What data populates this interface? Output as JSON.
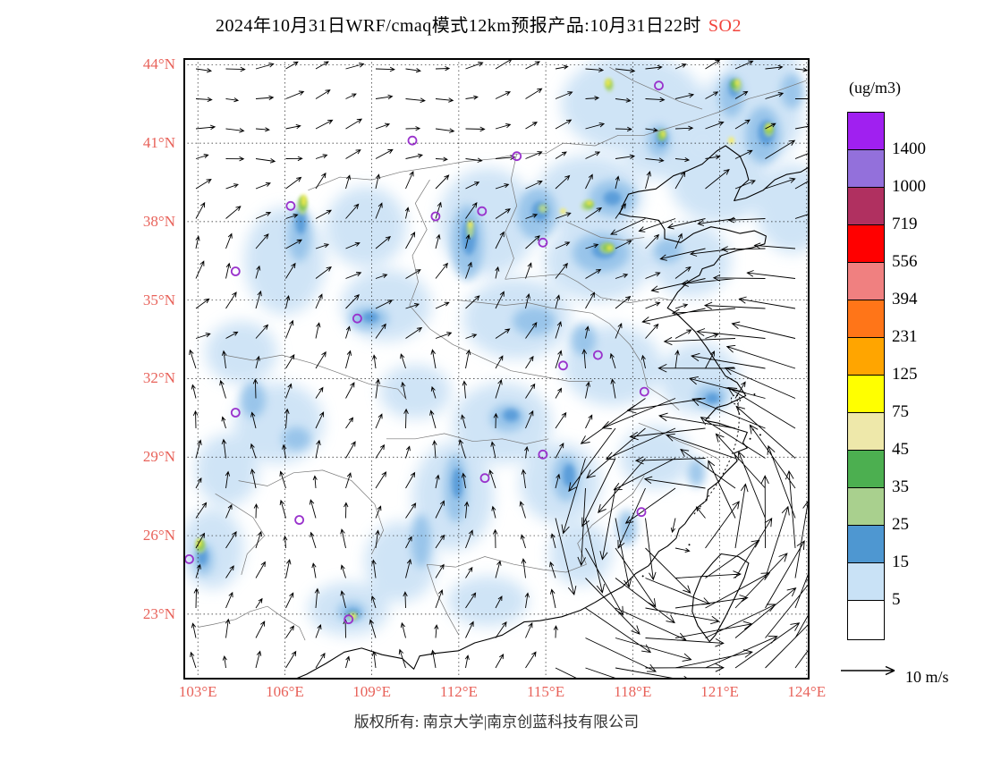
{
  "title": {
    "main": "2024年10月31日WRF/cmaq模式12km预报产品:10月31日22时",
    "species": "SO2",
    "species_color": "#F2433B"
  },
  "axes": {
    "label_color": "#E8625A",
    "lat_ticks": [
      {
        "label": "44°N",
        "value": 44
      },
      {
        "label": "41°N",
        "value": 41
      },
      {
        "label": "38°N",
        "value": 38
      },
      {
        "label": "35°N",
        "value": 35
      },
      {
        "label": "32°N",
        "value": 32
      },
      {
        "label": "29°N",
        "value": 29
      },
      {
        "label": "26°N",
        "value": 26
      },
      {
        "label": "23°N",
        "value": 23
      }
    ],
    "lon_ticks": [
      {
        "label": "103°E",
        "value": 103
      },
      {
        "label": "106°E",
        "value": 106
      },
      {
        "label": "109°E",
        "value": 109
      },
      {
        "label": "112°E",
        "value": 112
      },
      {
        "label": "115°E",
        "value": 115
      },
      {
        "label": "118°E",
        "value": 118
      },
      {
        "label": "121°E",
        "value": 121
      },
      {
        "label": "124°E",
        "value": 124
      }
    ]
  },
  "legend": {
    "unit": "(ug/m3)",
    "levels": [
      1400,
      1000,
      719,
      556,
      394,
      231,
      125,
      75,
      45,
      35,
      25,
      15,
      5
    ],
    "colors": [
      "#A020F0",
      "#9370DB",
      "#B03060",
      "#FF0000",
      "#F08080",
      "#FF7518",
      "#FFA500",
      "#FFFF00",
      "#EEE8AA",
      "#4CAF50",
      "#A9D08E",
      "#4E97D1",
      "#C9E2F6",
      "#FFFFFF"
    ]
  },
  "wind_scale": {
    "label": "10 m/s"
  },
  "footer": {
    "copyright": "版权所有: 南京大学|南京创蓝科技有限公司"
  },
  "map": {
    "lon_range": [
      102.5,
      124.1
    ],
    "lat_range": [
      20.5,
      44.25
    ],
    "marker_color": "#9932CC",
    "city_markers": [
      [
        118.9,
        43.2
      ],
      [
        110.4,
        41.1
      ],
      [
        114.0,
        40.5
      ],
      [
        106.2,
        38.6
      ],
      [
        111.2,
        38.2
      ],
      [
        112.8,
        38.4
      ],
      [
        114.9,
        37.2
      ],
      [
        104.3,
        36.1
      ],
      [
        108.5,
        34.3
      ],
      [
        115.6,
        32.5
      ],
      [
        116.8,
        32.9
      ],
      [
        118.4,
        31.5
      ],
      [
        104.3,
        30.7
      ],
      [
        114.9,
        29.1
      ],
      [
        112.9,
        28.2
      ],
      [
        106.5,
        26.6
      ],
      [
        118.3,
        26.9
      ],
      [
        102.7,
        25.1
      ],
      [
        108.2,
        22.8
      ]
    ]
  }
}
